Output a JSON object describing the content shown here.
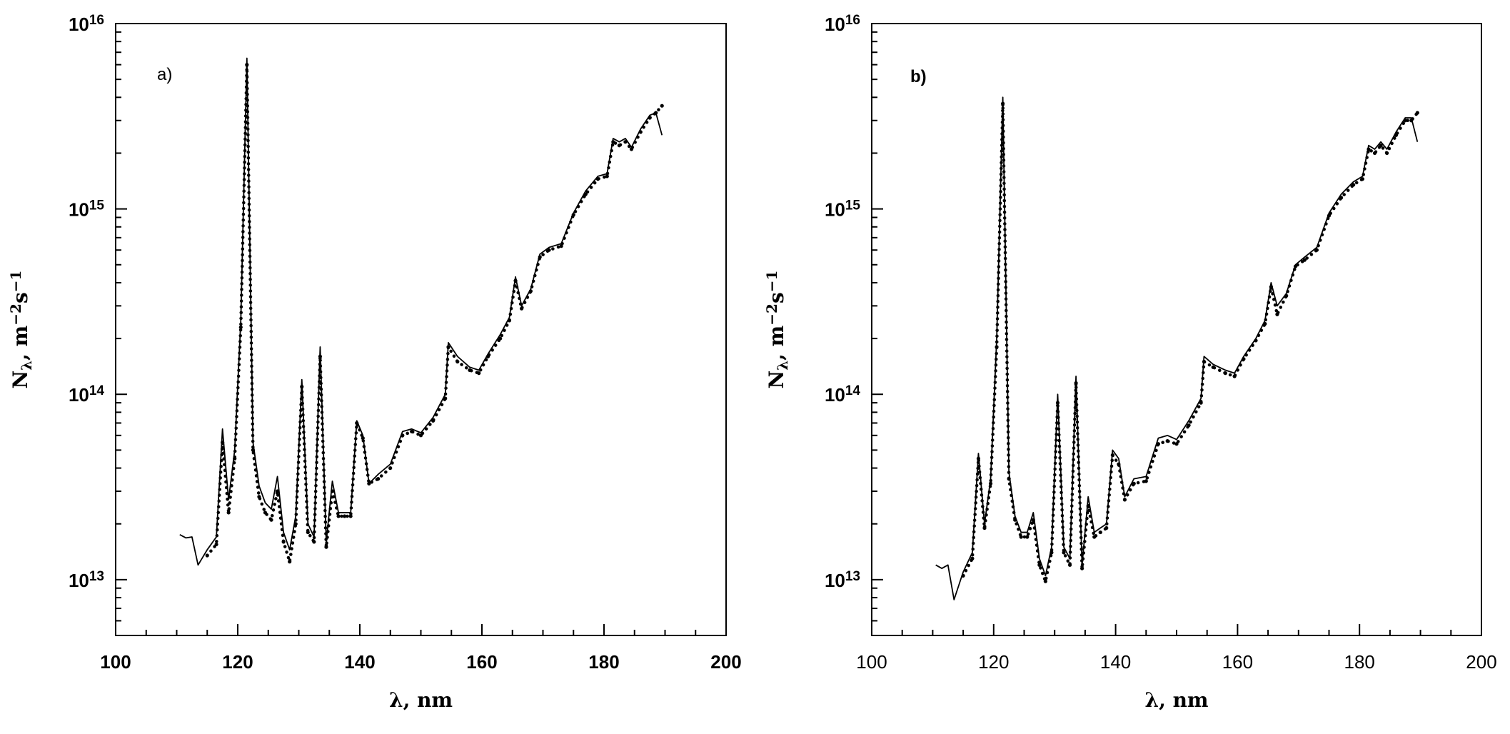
{
  "chart_data": [
    {
      "type": "line",
      "panel_label": "a)",
      "xlabel": "λ, nm",
      "ylabel": "Nλ, m⁻²s⁻¹",
      "ylabel_parts": {
        "main": "N",
        "sub": "λ",
        "rest1": ", m",
        "sup1": "−2",
        "rest2": "s",
        "sup2": "−1"
      },
      "xlim": [
        100,
        200
      ],
      "ylim": [
        5000000000000.0,
        1e+16
      ],
      "yscale": "log",
      "grid": false,
      "x_ticks": [
        "100",
        "120",
        "140",
        "160",
        "180",
        "200"
      ],
      "y_ticks": [
        {
          "base": "10",
          "exp": "13"
        },
        {
          "base": "10",
          "exp": "14"
        },
        {
          "base": "10",
          "exp": "15"
        },
        {
          "base": "10",
          "exp": "16"
        }
      ],
      "series": [
        {
          "style": "solid",
          "x": [
            110.5,
            111.5,
            112.5,
            113.5,
            115,
            116.5,
            117.5,
            118.5,
            119.5,
            120.5,
            121.5,
            122.5,
            123.5,
            124.5,
            125.5,
            126.5,
            127.5,
            128.5,
            129.5,
            130.5,
            131.5,
            132.5,
            133.5,
            134.5,
            135.5,
            136.5,
            137.5,
            138.5,
            139.5,
            140.5,
            141.5,
            143,
            145,
            147,
            148.5,
            150,
            152,
            154,
            154.5,
            156,
            158,
            159.5,
            161,
            163,
            164.5,
            165.5,
            166.5,
            168,
            169.5,
            171,
            173,
            175,
            177,
            179,
            180.5,
            181.5,
            182.5,
            183.5,
            184.5,
            186,
            187.5,
            188.5,
            189.5
          ],
          "y": [
            17500000000000.0,
            16800000000000.0,
            17000000000000.0,
            12000000000000.0,
            14500000000000.0,
            17000000000000.0,
            65000000000000.0,
            27000000000000.0,
            50000000000000.0,
            250000000000000.0,
            6500000000000000.0,
            55000000000000.0,
            32000000000000.0,
            26000000000000.0,
            24000000000000.0,
            36000000000000.0,
            18000000000000.0,
            14500000000000.0,
            22000000000000.0,
            120000000000000.0,
            20000000000000.0,
            17000000000000.0,
            180000000000000.0,
            16000000000000.0,
            34000000000000.0,
            23000000000000.0,
            23000000000000.0,
            23000000000000.0,
            72000000000000.0,
            60000000000000.0,
            33000000000000.0,
            37000000000000.0,
            42000000000000.0,
            63000000000000.0,
            65000000000000.0,
            62000000000000.0,
            75000000000000.0,
            100000000000000.0,
            190000000000000.0,
            160000000000000.0,
            140000000000000.0,
            135000000000000.0,
            165000000000000.0,
            210000000000000.0,
            260000000000000.0,
            430000000000000.0,
            300000000000000.0,
            370000000000000.0,
            570000000000000.0,
            620000000000000.0,
            650000000000000.0,
            950000000000000.0,
            1250000000000000.0,
            1500000000000000.0,
            1550000000000000.0,
            2400000000000000.0,
            2300000000000000.0,
            2400000000000000.0,
            2150000000000000.0,
            2700000000000000.0,
            3200000000000000.0,
            3300000000000000.0,
            2500000000000000.0
          ]
        },
        {
          "style": "dotted",
          "x": [
            115,
            116.5,
            117.5,
            118.5,
            119.5,
            120.5,
            121.5,
            122.5,
            123.5,
            124.5,
            125.5,
            126.5,
            127.5,
            128.5,
            129.5,
            130.5,
            131.5,
            132.5,
            133.5,
            134.5,
            135.5,
            136.5,
            137.5,
            138.5,
            139.5,
            140.5,
            141.5,
            143,
            145,
            147,
            148.5,
            150,
            152,
            154,
            154.5,
            156,
            158,
            159.5,
            161,
            163,
            164.5,
            165.5,
            166.5,
            168,
            169.5,
            171,
            173,
            175,
            177,
            179,
            180.5,
            181.5,
            182.5,
            183.5,
            184.5,
            186,
            187.5,
            188.5,
            189.5
          ],
          "y": [
            13500000000000.0,
            15500000000000.0,
            55000000000000.0,
            23000000000000.0,
            45000000000000.0,
            230000000000000.0,
            6000000000000000.0,
            50000000000000.0,
            28000000000000.0,
            23000000000000.0,
            21000000000000.0,
            30000000000000.0,
            16000000000000.0,
            12500000000000.0,
            20000000000000.0,
            110000000000000.0,
            18000000000000.0,
            16000000000000.0,
            160000000000000.0,
            15000000000000.0,
            30000000000000.0,
            22000000000000.0,
            22000000000000.0,
            22000000000000.0,
            70000000000000.0,
            58000000000000.0,
            33000000000000.0,
            35000000000000.0,
            40000000000000.0,
            60000000000000.0,
            63000000000000.0,
            60000000000000.0,
            72000000000000.0,
            95000000000000.0,
            180000000000000.0,
            150000000000000.0,
            135000000000000.0,
            130000000000000.0,
            160000000000000.0,
            200000000000000.0,
            250000000000000.0,
            410000000000000.0,
            290000000000000.0,
            360000000000000.0,
            550000000000000.0,
            600000000000000.0,
            630000000000000.0,
            930000000000000.0,
            1200000000000000.0,
            1450000000000000.0,
            1500000000000000.0,
            2300000000000000.0,
            2200000000000000.0,
            2300000000000000.0,
            2100000000000000.0,
            2600000000000000.0,
            3100000000000000.0,
            3300000000000000.0,
            3600000000000000.0
          ]
        }
      ]
    },
    {
      "type": "line",
      "panel_label": "b)",
      "xlabel": "λ, nm",
      "ylabel": "Nλ, m⁻²s⁻¹",
      "ylabel_parts": {
        "main": "N",
        "sub": "λ",
        "rest1": ", m",
        "sup1": "−2",
        "rest2": "s",
        "sup2": "−1"
      },
      "xlim": [
        100,
        200
      ],
      "ylim": [
        5000000000000.0,
        1e+16
      ],
      "yscale": "log",
      "grid": false,
      "x_ticks": [
        "100",
        "120",
        "140",
        "160",
        "180",
        "200"
      ],
      "y_ticks": [
        {
          "base": "10",
          "exp": "13"
        },
        {
          "base": "10",
          "exp": "14"
        },
        {
          "base": "10",
          "exp": "15"
        },
        {
          "base": "10",
          "exp": "16"
        }
      ],
      "series": [
        {
          "style": "solid",
          "x": [
            110.5,
            111.5,
            112.5,
            113.5,
            115,
            116.5,
            117.5,
            118.5,
            119.5,
            120.5,
            121.5,
            122.5,
            123.5,
            124.5,
            125.5,
            126.5,
            127.5,
            128.5,
            129.5,
            130.5,
            131.5,
            132.5,
            133.5,
            134.5,
            135.5,
            136.5,
            137.5,
            138.5,
            139.5,
            140.5,
            141.5,
            143,
            145,
            147,
            148.5,
            150,
            152,
            154,
            154.5,
            156,
            158,
            159.5,
            161,
            163,
            164.5,
            165.5,
            166.5,
            168,
            169.5,
            171,
            173,
            175,
            177,
            179,
            180.5,
            181.5,
            182.5,
            183.5,
            184.5,
            186,
            187.5,
            188.5,
            189.5
          ],
          "y": [
            12000000000000.0,
            11500000000000.0,
            12000000000000.0,
            7800000000000.0,
            11000000000000.0,
            14000000000000.0,
            48000000000000.0,
            20000000000000.0,
            35000000000000.0,
            200000000000000.0,
            4000000000000000.0,
            38000000000000.0,
            22000000000000.0,
            18000000000000.0,
            18000000000000.0,
            23000000000000.0,
            13000000000000.0,
            10500000000000.0,
            15000000000000.0,
            100000000000000.0,
            15000000000000.0,
            13000000000000.0,
            125000000000000.0,
            12000000000000.0,
            28000000000000.0,
            18000000000000.0,
            19000000000000.0,
            20000000000000.0,
            50000000000000.0,
            45000000000000.0,
            28000000000000.0,
            35000000000000.0,
            36000000000000.0,
            58000000000000.0,
            60000000000000.0,
            57000000000000.0,
            72000000000000.0,
            95000000000000.0,
            160000000000000.0,
            145000000000000.0,
            135000000000000.0,
            130000000000000.0,
            160000000000000.0,
            200000000000000.0,
            250000000000000.0,
            400000000000000.0,
            300000000000000.0,
            350000000000000.0,
            500000000000000.0,
            550000000000000.0,
            620000000000000.0,
            950000000000000.0,
            1200000000000000.0,
            1400000000000000.0,
            1500000000000000.0,
            2200000000000000.0,
            2100000000000000.0,
            2300000000000000.0,
            2100000000000000.0,
            2600000000000000.0,
            3100000000000000.0,
            3100000000000000.0,
            2300000000000000.0
          ]
        },
        {
          "style": "dotted",
          "x": [
            115,
            116.5,
            117.5,
            118.5,
            119.5,
            120.5,
            121.5,
            122.5,
            123.5,
            124.5,
            125.5,
            126.5,
            127.5,
            128.5,
            129.5,
            130.5,
            131.5,
            132.5,
            133.5,
            134.5,
            135.5,
            136.5,
            137.5,
            138.5,
            139.5,
            140.5,
            141.5,
            143,
            145,
            147,
            148.5,
            150,
            152,
            154,
            154.5,
            156,
            158,
            159.5,
            161,
            163,
            164.5,
            165.5,
            166.5,
            168,
            169.5,
            171,
            173,
            175,
            177,
            179,
            180.5,
            181.5,
            182.5,
            183.5,
            184.5,
            186,
            187.5,
            188.5,
            189.5
          ],
          "y": [
            10500000000000.0,
            13000000000000.0,
            45000000000000.0,
            19000000000000.0,
            33000000000000.0,
            180000000000000.0,
            3700000000000000.0,
            35000000000000.0,
            21000000000000.0,
            17000000000000.0,
            17000000000000.0,
            21000000000000.0,
            12000000000000.0,
            9800000000000.0,
            14000000000000.0,
            90000000000000.0,
            14000000000000.0,
            12000000000000.0,
            115000000000000.0,
            11500000000000.0,
            25000000000000.0,
            17000000000000.0,
            18000000000000.0,
            19000000000000.0,
            47000000000000.0,
            42000000000000.0,
            27000000000000.0,
            33000000000000.0,
            34000000000000.0,
            54000000000000.0,
            56000000000000.0,
            54000000000000.0,
            68000000000000.0,
            90000000000000.0,
            150000000000000.0,
            140000000000000.0,
            130000000000000.0,
            125000000000000.0,
            155000000000000.0,
            195000000000000.0,
            240000000000000.0,
            380000000000000.0,
            270000000000000.0,
            340000000000000.0,
            490000000000000.0,
            530000000000000.0,
            600000000000000.0,
            920000000000000.0,
            1150000000000000.0,
            1350000000000000.0,
            1450000000000000.0,
            2100000000000000.0,
            2000000000000000.0,
            2200000000000000.0,
            2000000000000000.0,
            2500000000000000.0,
            3000000000000000.0,
            3000000000000000.0,
            3300000000000000.0
          ]
        }
      ]
    }
  ]
}
